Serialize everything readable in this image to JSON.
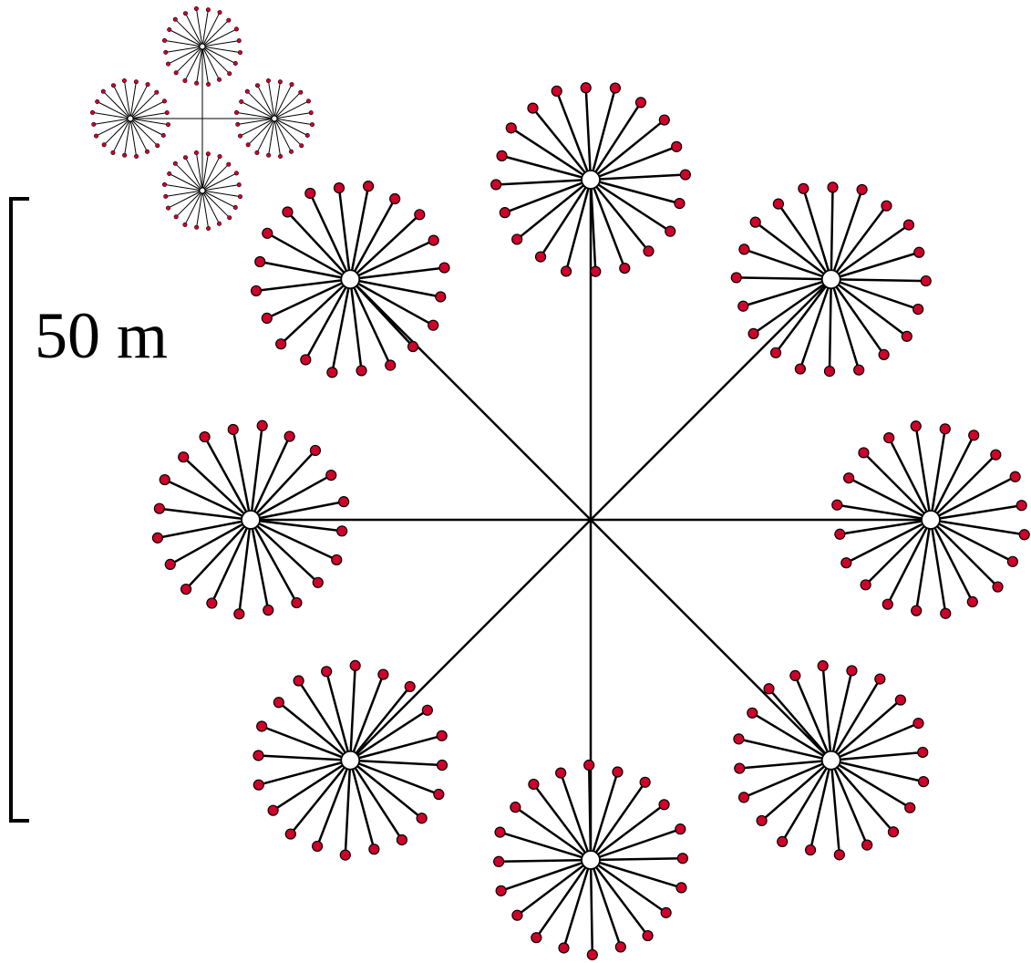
{
  "scale_bar": {
    "label": "50 m"
  }
}
